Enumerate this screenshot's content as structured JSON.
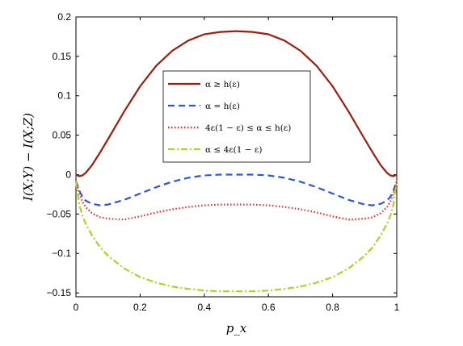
{
  "chart_data": {
    "type": "line",
    "title": "",
    "xlabel": "p_x",
    "ylabel": "I(X;Y) − I(X;Z)",
    "xlim": [
      0,
      1
    ],
    "ylim": [
      -0.155,
      0.2
    ],
    "grid": false,
    "legend_position": "upper-center",
    "x_ticks": [
      0,
      0.2,
      0.4,
      0.6,
      0.8,
      1
    ],
    "x_tick_labels": [
      "0",
      "0.2",
      "0.4",
      "0.6",
      "0.8",
      "1"
    ],
    "y_ticks": [
      -0.15,
      -0.1,
      -0.05,
      0,
      0.05,
      0.1,
      0.15,
      0.2
    ],
    "y_tick_labels": [
      "−0.15",
      "−0.1",
      "−0.05",
      "0",
      "0.05",
      "0.1",
      "0.15",
      "0.2"
    ],
    "x": [
      0,
      0.01,
      0.02,
      0.03,
      0.05,
      0.075,
      0.1,
      0.15,
      0.2,
      0.25,
      0.3,
      0.35,
      0.4,
      0.45,
      0.5,
      0.55,
      0.6,
      0.65,
      0.7,
      0.75,
      0.8,
      0.85,
      0.9,
      0.925,
      0.95,
      0.97,
      0.98,
      0.99,
      1
    ],
    "series": [
      {
        "name": "α ≥ h(ε)",
        "color": "#a01c0c",
        "dash": "solid",
        "values": [
          0,
          -0.002,
          -0.001,
          0.002,
          0.012,
          0.028,
          0.045,
          0.08,
          0.112,
          0.138,
          0.157,
          0.17,
          0.178,
          0.181,
          0.182,
          0.181,
          0.178,
          0.17,
          0.157,
          0.138,
          0.112,
          0.08,
          0.045,
          0.028,
          0.012,
          0.002,
          -0.001,
          -0.002,
          0
        ]
      },
      {
        "name": "α = h(ε)",
        "color": "#2a55e0",
        "dash": "dashed",
        "values": [
          -0.008,
          -0.02,
          -0.028,
          -0.033,
          -0.037,
          -0.039,
          -0.038,
          -0.032,
          -0.024,
          -0.016,
          -0.009,
          -0.004,
          -0.001,
          0,
          0,
          0,
          -0.001,
          -0.004,
          -0.009,
          -0.016,
          -0.024,
          -0.032,
          -0.038,
          -0.039,
          -0.037,
          -0.033,
          -0.028,
          -0.02,
          -0.008
        ]
      },
      {
        "name": "4ε(1 − ε) ≤ α ≤ h(ε)",
        "color": "#ff2020",
        "dash": "dotted",
        "values": [
          -0.008,
          -0.024,
          -0.034,
          -0.041,
          -0.049,
          -0.054,
          -0.056,
          -0.057,
          -0.053,
          -0.048,
          -0.044,
          -0.041,
          -0.039,
          -0.038,
          -0.038,
          -0.038,
          -0.039,
          -0.041,
          -0.044,
          -0.048,
          -0.053,
          -0.057,
          -0.056,
          -0.054,
          -0.049,
          -0.041,
          -0.034,
          -0.024,
          -0.008
        ]
      },
      {
        "name": "α ≤ 4ε(1 − ε)",
        "color": "#b4d020",
        "dash": "dashdot",
        "values": [
          -0.008,
          -0.038,
          -0.052,
          -0.062,
          -0.077,
          -0.092,
          -0.103,
          -0.119,
          -0.13,
          -0.137,
          -0.142,
          -0.145,
          -0.147,
          -0.148,
          -0.148,
          -0.148,
          -0.147,
          -0.145,
          -0.142,
          -0.137,
          -0.13,
          -0.119,
          -0.103,
          -0.092,
          -0.077,
          -0.062,
          -0.052,
          -0.038,
          -0.008
        ]
      }
    ]
  }
}
